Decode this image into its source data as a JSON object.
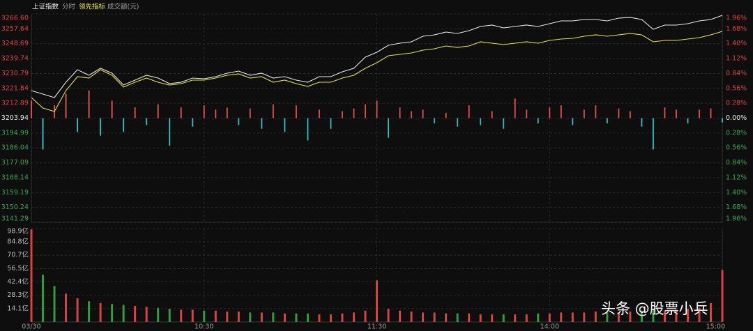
{
  "watermark": "头条 @股票小兵",
  "chart_data": [
    {
      "type": "line",
      "period_label": "分时",
      "x": [
        0,
        4,
        8,
        12,
        16,
        20,
        24,
        28,
        32,
        36,
        40,
        44,
        48,
        52,
        56,
        60,
        64,
        68,
        72,
        76,
        80,
        84,
        88,
        92,
        96,
        100,
        104,
        108,
        112,
        116,
        120,
        124,
        128,
        132,
        136,
        140,
        144,
        148,
        152,
        156,
        160,
        164,
        168,
        172,
        176,
        180,
        184,
        188,
        192,
        196,
        200,
        204,
        208,
        212,
        216,
        220,
        224,
        228,
        232,
        236,
        240
      ],
      "xlim": [
        0,
        240
      ],
      "ylim": [
        3141.29,
        3266.6
      ],
      "yticks": [
        {
          "value": 3266.6,
          "label": "3266.60"
        },
        3257.64,
        3248.69,
        3239.74,
        3230.79,
        3221.84,
        3212.89,
        3203.94,
        3194.99,
        3186.04,
        3177.09,
        3168.14,
        3159.19,
        3150.24,
        3141.29
      ],
      "y2lim": [
        -1.96,
        1.96
      ],
      "y2ticks": [
        {
          "value": 1.96,
          "label": "1.96%"
        },
        {
          "value": 1.68,
          "label": "1.68%"
        },
        {
          "value": 1.4,
          "label": "1.40%"
        },
        {
          "value": 1.12,
          "label": "1.12%"
        },
        {
          "value": 0.84,
          "label": "0.84%"
        },
        {
          "value": 0.56,
          "label": "0.56%"
        },
        {
          "value": 0.28,
          "label": "0.28%"
        },
        {
          "value": 0,
          "label": "0.00%"
        },
        {
          "value": -0.28,
          "label": "0.28%"
        },
        {
          "value": -0.56,
          "label": "0.56%"
        },
        {
          "value": -0.84,
          "label": "0.84%"
        },
        {
          "value": -1.12,
          "label": "1.12%"
        },
        {
          "value": -1.4,
          "label": "1.40%"
        },
        {
          "value": -1.68,
          "label": "1.68%"
        },
        {
          "value": -1.96,
          "label": "1.96%"
        }
      ],
      "grid": true,
      "up_color": "#e2403c",
      "down_color": "#2fa84f",
      "series": [
        {
          "name": "上证指数",
          "color": "#e8e8e8",
          "type": "line",
          "values": [
            3220.5,
            3218.4,
            3216.31,
            3225.53,
            3233.07,
            3229.72,
            3233.91,
            3230.98,
            3223.85,
            3226.79,
            3229.72,
            3228.04,
            3224.69,
            3225.53,
            3228.04,
            3227.62,
            3228.88,
            3230.98,
            3232.23,
            3229.72,
            3230.98,
            3228.04,
            3228.88,
            3226.79,
            3225.53,
            3228.88,
            3228.88,
            3231.82,
            3233.91,
            3240.62,
            3243.55,
            3247.74,
            3249.0,
            3249.84,
            3253.19,
            3254.03,
            3255.7,
            3254.87,
            3256.54,
            3259.06,
            3259.9,
            3258.22,
            3259.06,
            3259.9,
            3259.06,
            3260.73,
            3262.41,
            3262.41,
            3263.25,
            3263.25,
            3262.41,
            3264.09,
            3264.51,
            3263.25,
            3257.38,
            3259.9,
            3259.9,
            3260.73,
            3262.41,
            3263.25,
            3265.76
          ]
        },
        {
          "name": "领先指标",
          "color": "#e6e61e",
          "type": "line",
          "values": [
            3216.31,
            3210.02,
            3207.93,
            3220.5,
            3228.88,
            3228.04,
            3233.07,
            3229.72,
            3222.6,
            3225.53,
            3228.04,
            3225.53,
            3223.85,
            3224.69,
            3226.79,
            3226.79,
            3228.04,
            3229.72,
            3230.56,
            3228.04,
            3228.88,
            3225.53,
            3226.79,
            3224.69,
            3223.01,
            3225.53,
            3225.53,
            3228.04,
            3229.72,
            3233.91,
            3237.26,
            3241.45,
            3242.29,
            3243.13,
            3244.81,
            3245.65,
            3247.32,
            3246.48,
            3247.32,
            3249.84,
            3249.0,
            3248.16,
            3249.0,
            3249.84,
            3249.0,
            3250.68,
            3251.51,
            3251.93,
            3253.19,
            3254.03,
            3253.19,
            3254.03,
            3254.87,
            3254.03,
            3249.84,
            3250.68,
            3250.68,
            3251.51,
            3252.35,
            3254.03,
            3256.12
          ]
        },
        {
          "type": "bar",
          "axis": "y2",
          "up_color": "#d9504c",
          "down_color": "#35b6c0",
          "values": [
            0.33,
            -0.59,
            0.24,
            0.46,
            -0.26,
            0.52,
            -0.33,
            0.33,
            -0.26,
            0.2,
            -0.13,
            0.26,
            -0.52,
            0.2,
            -0.16,
            0.24,
            0.16,
            0.2,
            -0.13,
            0.18,
            -0.2,
            0.26,
            -0.26,
            0.24,
            -0.42,
            0.16,
            -0.2,
            0.13,
            0.18,
            0.26,
            0.33,
            -0.37,
            0.2,
            0.13,
            0.16,
            -0.1,
            0.1,
            -0.16,
            0.24,
            -0.13,
            0.13,
            -0.2,
            0.37,
            0.16,
            -0.1,
            0.2,
            0.24,
            -0.13,
            0.16,
            0.24,
            -0.1,
            0.18,
            0.13,
            -0.16,
            -0.59,
            0.2,
            0.16,
            -0.1,
            0.16,
            0.18,
            -0.08
          ]
        }
      ]
    },
    {
      "type": "bar",
      "title": "成交额(元)",
      "x": [
        0,
        4,
        8,
        12,
        16,
        20,
        24,
        28,
        32,
        36,
        40,
        44,
        48,
        52,
        56,
        60,
        64,
        68,
        72,
        76,
        80,
        84,
        88,
        92,
        96,
        100,
        104,
        108,
        112,
        116,
        120,
        124,
        128,
        132,
        136,
        140,
        144,
        148,
        152,
        156,
        160,
        164,
        168,
        172,
        176,
        180,
        184,
        188,
        192,
        196,
        200,
        204,
        208,
        212,
        216,
        220,
        224,
        228,
        232,
        236,
        240
      ],
      "xlim": [
        0,
        240
      ],
      "xticks": [
        {
          "value": 0,
          "label": "03/30"
        },
        {
          "value": 60,
          "label": "10:30"
        },
        {
          "value": 120,
          "label": "11:30"
        },
        {
          "value": 180,
          "label": "14:00"
        },
        {
          "value": 240,
          "label": "15:00"
        }
      ],
      "ylim": [
        0,
        98.9
      ],
      "yticks": [
        {
          "value": 98.9,
          "label": "98.9亿"
        },
        {
          "value": 84.8,
          "label": "84.8亿"
        },
        {
          "value": 70.7,
          "label": "70.7亿"
        },
        {
          "value": 56.5,
          "label": "56.5亿"
        },
        {
          "value": 42.4,
          "label": "42.4亿"
        },
        {
          "value": 28.3,
          "label": "28.3亿"
        },
        {
          "value": 14.1,
          "label": "14.1亿"
        }
      ],
      "grid": true,
      "up_color": "#d8433f",
      "down_color": "#2c9f3c",
      "values": [
        98,
        50,
        38,
        30,
        25,
        22,
        20,
        19,
        18,
        17,
        16,
        15,
        14,
        13,
        13,
        12,
        12,
        11,
        11,
        10,
        10,
        10,
        9,
        9,
        9,
        8,
        8,
        9,
        10,
        12,
        44,
        14,
        12,
        11,
        10,
        10,
        9,
        9,
        9,
        8,
        8,
        8,
        8,
        8,
        9,
        9,
        10,
        10,
        10,
        11,
        10,
        10,
        11,
        12,
        13,
        12,
        13,
        14,
        15,
        20,
        55
      ]
    }
  ]
}
